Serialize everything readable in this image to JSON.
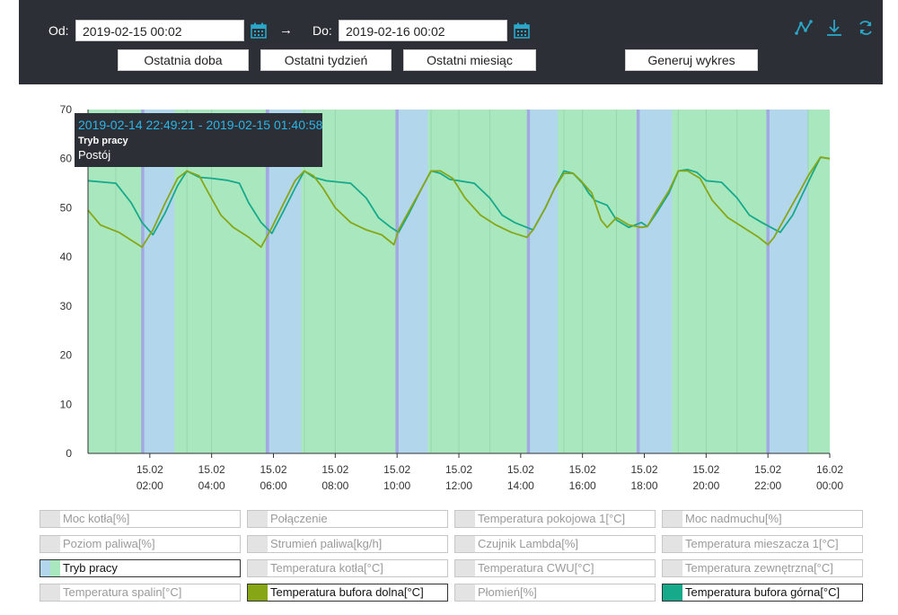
{
  "toolbar": {
    "from_label": "Od:",
    "from_value": "2019-02-15 00:02",
    "arrow": "→",
    "to_label": "Do:",
    "to_value": "2019-02-16 00:02",
    "btn_last_day": "Ostatnia doba",
    "btn_last_week": "Ostatni tydzień",
    "btn_last_month": "Ostatni miesiąc",
    "btn_generate": "Generuj wykres",
    "icons": [
      "chart-line-icon",
      "download-icon",
      "refresh-icon"
    ],
    "accent": "#2aa7c9"
  },
  "tooltip": {
    "range": "2019-02-14 22:49:21 - 2019-02-15 01:40:58",
    "series": "Tryb pracy",
    "value": "Postój"
  },
  "chart_data": {
    "type": "line",
    "ylim": [
      0,
      70
    ],
    "yticks": [
      0,
      10,
      20,
      30,
      40,
      50,
      60,
      70
    ],
    "xlim": [
      0,
      24
    ],
    "xticks": [
      {
        "t": 2,
        "l1": "15.02",
        "l2": "02:00"
      },
      {
        "t": 4,
        "l1": "15.02",
        "l2": "04:00"
      },
      {
        "t": 6,
        "l1": "15.02",
        "l2": "06:00"
      },
      {
        "t": 8,
        "l1": "15.02",
        "l2": "08:00"
      },
      {
        "t": 10,
        "l1": "15.02",
        "l2": "10:00"
      },
      {
        "t": 12,
        "l1": "15.02",
        "l2": "12:00"
      },
      {
        "t": 14,
        "l1": "15.02",
        "l2": "14:00"
      },
      {
        "t": 16,
        "l1": "15.02",
        "l2": "16:00"
      },
      {
        "t": 18,
        "l1": "15.02",
        "l2": "18:00"
      },
      {
        "t": 20,
        "l1": "15.02",
        "l2": "20:00"
      },
      {
        "t": 22,
        "l1": "15.02",
        "l2": "22:00"
      },
      {
        "t": 24,
        "l1": "16.02",
        "l2": "00:00"
      }
    ],
    "grid": false,
    "background_bands": {
      "series": "Tryb pracy",
      "colors": {
        "work": "#a9e8bf",
        "idle": "#b2d6ec",
        "transition": "#a2a8e0"
      },
      "idle_ranges": [
        [
          1.8,
          2.8
        ],
        [
          5.8,
          6.9
        ],
        [
          10.0,
          11.0
        ],
        [
          14.25,
          15.2
        ],
        [
          17.8,
          18.9
        ],
        [
          22.0,
          23.3
        ]
      ],
      "transition_ranges": [
        [
          1.72,
          1.82
        ],
        [
          5.75,
          5.86
        ],
        [
          9.95,
          10.05
        ],
        [
          14.2,
          14.3
        ],
        [
          17.75,
          17.85
        ],
        [
          21.95,
          22.05
        ]
      ]
    },
    "series": [
      {
        "name": "Temperatura bufora górna[°C]",
        "color": "#16a98a",
        "x": [
          0.0,
          0.9,
          1.4,
          1.75,
          2.1,
          2.5,
          2.9,
          3.2,
          3.6,
          4.0,
          4.5,
          4.9,
          5.2,
          5.6,
          5.95,
          6.3,
          6.7,
          7.0,
          7.3,
          7.7,
          8.0,
          8.5,
          9.0,
          9.4,
          9.8,
          10.05,
          10.4,
          10.8,
          11.1,
          11.4,
          11.7,
          12.0,
          12.5,
          13.0,
          13.4,
          13.8,
          14.2,
          14.4,
          14.8,
          15.1,
          15.4,
          15.7,
          16.0,
          16.2,
          16.4,
          16.8,
          17.1,
          17.5,
          17.9,
          18.1,
          18.4,
          18.8,
          19.1,
          19.4,
          19.7,
          20.0,
          20.5,
          21.0,
          21.4,
          21.8,
          22.1,
          22.4,
          22.8,
          23.1,
          23.4,
          23.7,
          24.0
        ],
        "values": [
          55.5,
          55.0,
          51.0,
          47.0,
          44.5,
          49.0,
          54.5,
          57.5,
          56.2,
          56.0,
          55.6,
          55.0,
          51.0,
          47.0,
          44.8,
          49.0,
          54.0,
          57.5,
          56.2,
          55.5,
          55.3,
          55.0,
          52.0,
          48.0,
          46.0,
          45.0,
          49.0,
          54.0,
          57.5,
          57.0,
          55.8,
          55.5,
          55.0,
          52.0,
          48.5,
          47.0,
          46.0,
          45.5,
          50.0,
          54.0,
          57.5,
          57.0,
          55.0,
          53.0,
          51.5,
          50.5,
          47.5,
          46.0,
          47.0,
          46.2,
          49.0,
          53.0,
          57.5,
          57.8,
          57.2,
          55.5,
          55.2,
          52.0,
          48.5,
          47.0,
          46.0,
          45.0,
          48.5,
          52.5,
          56.5,
          60.3,
          60.0
        ]
      },
      {
        "name": "Temperatura bufora dolna[°C]",
        "color": "#86a616",
        "x": [
          0.0,
          0.4,
          1.0,
          1.5,
          1.75,
          2.1,
          2.5,
          2.9,
          3.2,
          3.6,
          3.9,
          4.3,
          4.7,
          5.2,
          5.6,
          5.95,
          6.3,
          6.7,
          7.0,
          7.3,
          7.6,
          8.0,
          8.5,
          9.0,
          9.5,
          9.9,
          10.05,
          10.4,
          10.8,
          11.1,
          11.4,
          11.8,
          12.2,
          12.7,
          13.2,
          13.7,
          14.2,
          14.4,
          14.8,
          15.1,
          15.4,
          15.7,
          15.95,
          16.3,
          16.6,
          16.8,
          17.1,
          17.5,
          17.9,
          18.1,
          18.4,
          18.8,
          19.1,
          19.4,
          19.8,
          20.2,
          20.7,
          21.2,
          21.7,
          22.0,
          22.2,
          22.6,
          23.0,
          23.3,
          23.7,
          24.0
        ],
        "values": [
          49.5,
          46.5,
          45.0,
          43.0,
          42.0,
          45.5,
          51.0,
          56.0,
          57.5,
          56.5,
          53.0,
          48.5,
          46.0,
          44.0,
          42.0,
          46.0,
          50.5,
          55.5,
          57.5,
          56.5,
          54.0,
          50.0,
          47.0,
          45.5,
          44.5,
          42.5,
          45.5,
          49.5,
          54.0,
          57.5,
          57.5,
          56.0,
          52.0,
          48.5,
          46.5,
          45.0,
          44.0,
          45.5,
          50.0,
          54.0,
          57.0,
          57.0,
          55.5,
          53.0,
          47.5,
          46.0,
          48.0,
          46.5,
          46.0,
          46.2,
          49.5,
          53.5,
          57.5,
          57.5,
          56.0,
          51.5,
          48.0,
          46.0,
          44.0,
          42.5,
          44.0,
          48.5,
          53.0,
          56.5,
          60.3,
          60.0
        ]
      }
    ]
  },
  "legend": [
    {
      "label": "Moc kotła[%]",
      "active": false,
      "color": ""
    },
    {
      "label": "Połączenie",
      "active": false,
      "color": ""
    },
    {
      "label": "Temperatura pokojowa 1[°C]",
      "active": false,
      "color": ""
    },
    {
      "label": "Moc nadmuchu[%]",
      "active": false,
      "color": ""
    },
    {
      "label": "Poziom paliwa[%]",
      "active": false,
      "color": ""
    },
    {
      "label": "Strumień paliwa[kg/h]",
      "active": false,
      "color": ""
    },
    {
      "label": "Czujnik Lambda[%]",
      "active": false,
      "color": ""
    },
    {
      "label": "Temperatura mieszacza 1[°C]",
      "active": false,
      "color": ""
    },
    {
      "label": "Tryb pracy",
      "active": true,
      "color": "#b2d6ec",
      "color2": "#a9e8bf"
    },
    {
      "label": "Temperatura kotła[°C]",
      "active": false,
      "color": ""
    },
    {
      "label": "Temperatura CWU[°C]",
      "active": false,
      "color": ""
    },
    {
      "label": "Temperatura zewnętrzna[°C]",
      "active": false,
      "color": ""
    },
    {
      "label": "Temperatura spalin[°C]",
      "active": false,
      "color": ""
    },
    {
      "label": "Temperatura bufora dolna[°C]",
      "active": true,
      "color": "#86a616"
    },
    {
      "label": "Płomień[%]",
      "active": false,
      "color": ""
    },
    {
      "label": "Temperatura bufora górna[°C]",
      "active": true,
      "color": "#16a98a"
    }
  ]
}
